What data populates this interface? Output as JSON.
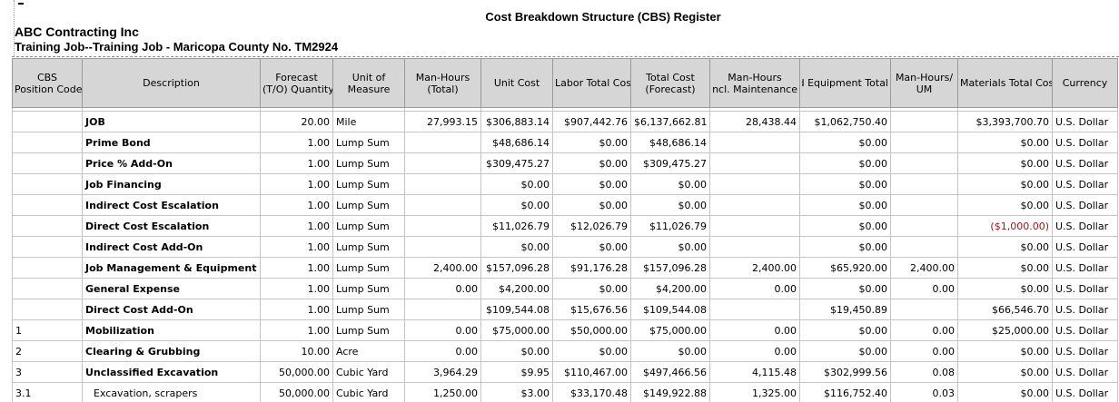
{
  "report": {
    "title": "Cost Breakdown Structure (CBS) Register",
    "company": "ABC Contracting Inc",
    "job": "Training Job--Training Job - Maricopa County No. TM2924"
  },
  "columns": {
    "cbs_code": [
      "CBS",
      "Position Code"
    ],
    "description": [
      "Description"
    ],
    "forecast_qty": [
      "Forecast",
      "(T/O) Quantity"
    ],
    "uom": [
      "Unit of",
      "Measure"
    ],
    "man_hours": [
      "Man-Hours",
      "(Total)"
    ],
    "unit_cost": [
      "Unit Cost"
    ],
    "labor_total": [
      "Labor Total Cost"
    ],
    "total_cost": [
      "Total Cost",
      "(Forecast)"
    ],
    "mh_maint": [
      "Man-Hours",
      "Total incl. Maintenance"
    ],
    "equip_total": [
      "Owned Equipment Total"
    ],
    "mh_per_um": [
      "Man-Hours/",
      "UM"
    ],
    "materials": [
      "Materials Total Cost"
    ],
    "currency": [
      "Currency"
    ]
  },
  "rows": [
    {
      "code": "",
      "desc": "JOB",
      "qty": "20.00",
      "uom": "Mile",
      "mh": "27,993.15",
      "unit_cost": "$306,883.14",
      "labor": "$907,442.76",
      "total": "$6,137,662.81",
      "mh_maint": "28,438.44",
      "equip": "$1,062,750.40",
      "mh_um": "",
      "materials": "$3,393,700.70",
      "currency": "U.S. Dollar"
    },
    {
      "code": "",
      "desc": "Prime Bond",
      "qty": "1.00",
      "uom": "Lump Sum",
      "mh": "",
      "unit_cost": "$48,686.14",
      "labor": "$0.00",
      "total": "$48,686.14",
      "mh_maint": "",
      "equip": "$0.00",
      "mh_um": "",
      "materials": "$0.00",
      "currency": "U.S. Dollar"
    },
    {
      "code": "",
      "desc": "Price % Add-On",
      "qty": "1.00",
      "uom": "Lump Sum",
      "mh": "",
      "unit_cost": "$309,475.27",
      "labor": "$0.00",
      "total": "$309,475.27",
      "mh_maint": "",
      "equip": "$0.00",
      "mh_um": "",
      "materials": "$0.00",
      "currency": "U.S. Dollar"
    },
    {
      "code": "",
      "desc": "Job Financing",
      "qty": "1.00",
      "uom": "Lump Sum",
      "mh": "",
      "unit_cost": "$0.00",
      "labor": "$0.00",
      "total": "$0.00",
      "mh_maint": "",
      "equip": "$0.00",
      "mh_um": "",
      "materials": "$0.00",
      "currency": "U.S. Dollar"
    },
    {
      "code": "",
      "desc": "Indirect Cost Escalation",
      "qty": "1.00",
      "uom": "Lump Sum",
      "mh": "",
      "unit_cost": "$0.00",
      "labor": "$0.00",
      "total": "$0.00",
      "mh_maint": "",
      "equip": "$0.00",
      "mh_um": "",
      "materials": "$0.00",
      "currency": "U.S. Dollar"
    },
    {
      "code": "",
      "desc": "Direct Cost Escalation",
      "qty": "1.00",
      "uom": "Lump Sum",
      "mh": "",
      "unit_cost": "$11,026.79",
      "labor": "$12,026.79",
      "total": "$11,026.79",
      "mh_maint": "",
      "equip": "$0.00",
      "mh_um": "",
      "materials": "($1,000.00)",
      "materials_negative": true,
      "currency": "U.S. Dollar"
    },
    {
      "code": "",
      "desc": "Indirect Cost Add-On",
      "qty": "1.00",
      "uom": "Lump Sum",
      "mh": "",
      "unit_cost": "$0.00",
      "labor": "$0.00",
      "total": "$0.00",
      "mh_maint": "",
      "equip": "$0.00",
      "mh_um": "",
      "materials": "$0.00",
      "currency": "U.S. Dollar"
    },
    {
      "code": "",
      "desc": "Job Management & Equipment",
      "qty": "1.00",
      "uom": "Lump Sum",
      "mh": "2,400.00",
      "unit_cost": "$157,096.28",
      "labor": "$91,176.28",
      "total": "$157,096.28",
      "mh_maint": "2,400.00",
      "equip": "$65,920.00",
      "mh_um": "2,400.00",
      "materials": "$0.00",
      "currency": "U.S. Dollar"
    },
    {
      "code": "",
      "desc": "General Expense",
      "qty": "1.00",
      "uom": "Lump Sum",
      "mh": "0.00",
      "unit_cost": "$4,200.00",
      "labor": "$0.00",
      "total": "$4,200.00",
      "mh_maint": "0.00",
      "equip": "$0.00",
      "mh_um": "0.00",
      "materials": "$0.00",
      "currency": "U.S. Dollar"
    },
    {
      "code": "",
      "desc": "Direct Cost Add-On",
      "qty": "1.00",
      "uom": "Lump Sum",
      "mh": "",
      "unit_cost": "$109,544.08",
      "labor": "$15,676.56",
      "total": "$109,544.08",
      "mh_maint": "",
      "equip": "$19,450.89",
      "mh_um": "",
      "materials": "$66,546.70",
      "currency": "U.S. Dollar"
    },
    {
      "code": "1",
      "desc": "Mobilization",
      "qty": "1.00",
      "uom": "Lump Sum",
      "mh": "0.00",
      "unit_cost": "$75,000.00",
      "labor": "$50,000.00",
      "total": "$75,000.00",
      "mh_maint": "0.00",
      "equip": "$0.00",
      "mh_um": "0.00",
      "materials": "$25,000.00",
      "currency": "U.S. Dollar"
    },
    {
      "code": "2",
      "desc": "Clearing & Grubbing",
      "qty": "10.00",
      "uom": "Acre",
      "mh": "0.00",
      "unit_cost": "$0.00",
      "labor": "$0.00",
      "total": "$0.00",
      "mh_maint": "0.00",
      "equip": "$0.00",
      "mh_um": "0.00",
      "materials": "$0.00",
      "currency": "U.S. Dollar"
    },
    {
      "code": "3",
      "desc": "Unclassified Excavation",
      "qty": "50,000.00",
      "uom": "Cubic Yard",
      "mh": "3,964.29",
      "unit_cost": "$9.95",
      "labor": "$110,467.00",
      "total": "$497,466.56",
      "mh_maint": "4,115.48",
      "equip": "$302,999.56",
      "mh_um": "0.08",
      "materials": "$0.00",
      "currency": "U.S. Dollar"
    },
    {
      "code": "3.1",
      "desc": "Excavation, scrapers",
      "child": true,
      "qty": "50,000.00",
      "uom": "Cubic Yard",
      "mh": "1,250.00",
      "unit_cost": "$3.00",
      "labor": "$33,170.48",
      "total": "$149,922.88",
      "mh_maint": "1,325.00",
      "equip": "$116,752.40",
      "mh_um": "0.03",
      "materials": "$0.00",
      "currency": "U.S. Dollar"
    }
  ]
}
